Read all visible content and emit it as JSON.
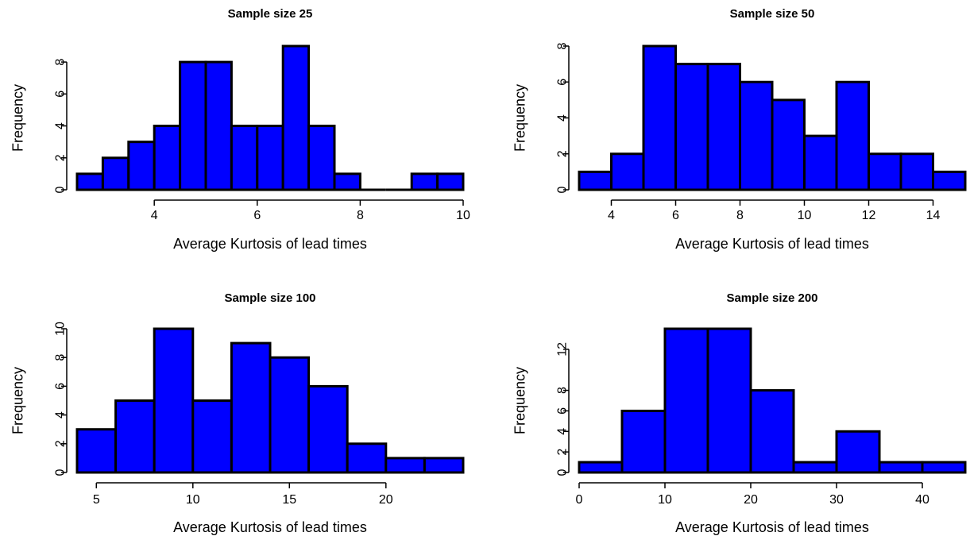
{
  "chart_data": [
    {
      "type": "bar",
      "title": "Sample size 25",
      "xlabel": "Average Kurtosis of lead times",
      "ylabel": "Frequency",
      "bar_color": "#0000ff",
      "bin_edges": [
        2.5,
        3.0,
        3.5,
        4.0,
        4.5,
        5.0,
        5.5,
        6.0,
        6.5,
        7.0,
        7.5,
        8.0,
        8.5,
        9.0,
        9.5,
        10.0
      ],
      "values": [
        1,
        2,
        3,
        4,
        8,
        8,
        4,
        4,
        9,
        4,
        1,
        0,
        0,
        1,
        1
      ],
      "xticks": [
        4,
        6,
        8,
        10
      ],
      "yticks": [
        0,
        2,
        4,
        6,
        8
      ],
      "xlim": [
        2.5,
        10
      ],
      "ylim": [
        0,
        9
      ]
    },
    {
      "type": "bar",
      "title": "Sample size 50",
      "xlabel": "Average Kurtosis of lead times",
      "ylabel": "Frequency",
      "bar_color": "#0000ff",
      "bin_edges": [
        3,
        4,
        5,
        6,
        7,
        8,
        9,
        10,
        11,
        12,
        13,
        14,
        15
      ],
      "values": [
        1,
        2,
        8,
        7,
        7,
        6,
        5,
        3,
        6,
        2,
        2,
        1
      ],
      "xticks": [
        4,
        6,
        8,
        10,
        12,
        14
      ],
      "yticks": [
        0,
        2,
        4,
        6,
        8
      ],
      "xlim": [
        3,
        15
      ],
      "ylim": [
        0,
        8
      ]
    },
    {
      "type": "bar",
      "title": "Sample size 100",
      "xlabel": "Average Kurtosis of lead times",
      "ylabel": "Frequency",
      "bar_color": "#0000ff",
      "bin_edges": [
        4,
        6,
        8,
        10,
        12,
        14,
        16,
        18,
        20,
        22,
        24
      ],
      "values": [
        3,
        5,
        10,
        5,
        9,
        8,
        6,
        2,
        1,
        1
      ],
      "xticks": [
        5,
        10,
        15,
        20
      ],
      "yticks": [
        0,
        2,
        4,
        6,
        8,
        10
      ],
      "xlim": [
        4,
        24
      ],
      "ylim": [
        0,
        10
      ]
    },
    {
      "type": "bar",
      "title": "Sample size 200",
      "xlabel": "Average Kurtosis of lead times",
      "ylabel": "Frequency",
      "bar_color": "#0000ff",
      "bin_edges": [
        0,
        5,
        10,
        15,
        20,
        25,
        30,
        35,
        40,
        45
      ],
      "values": [
        1,
        6,
        14,
        14,
        8,
        1,
        4,
        1,
        1
      ],
      "xticks": [
        0,
        10,
        20,
        30,
        40
      ],
      "yticks": [
        0,
        2,
        4,
        6,
        8,
        12
      ],
      "xlim": [
        0,
        45
      ],
      "ylim": [
        0,
        14
      ]
    }
  ]
}
